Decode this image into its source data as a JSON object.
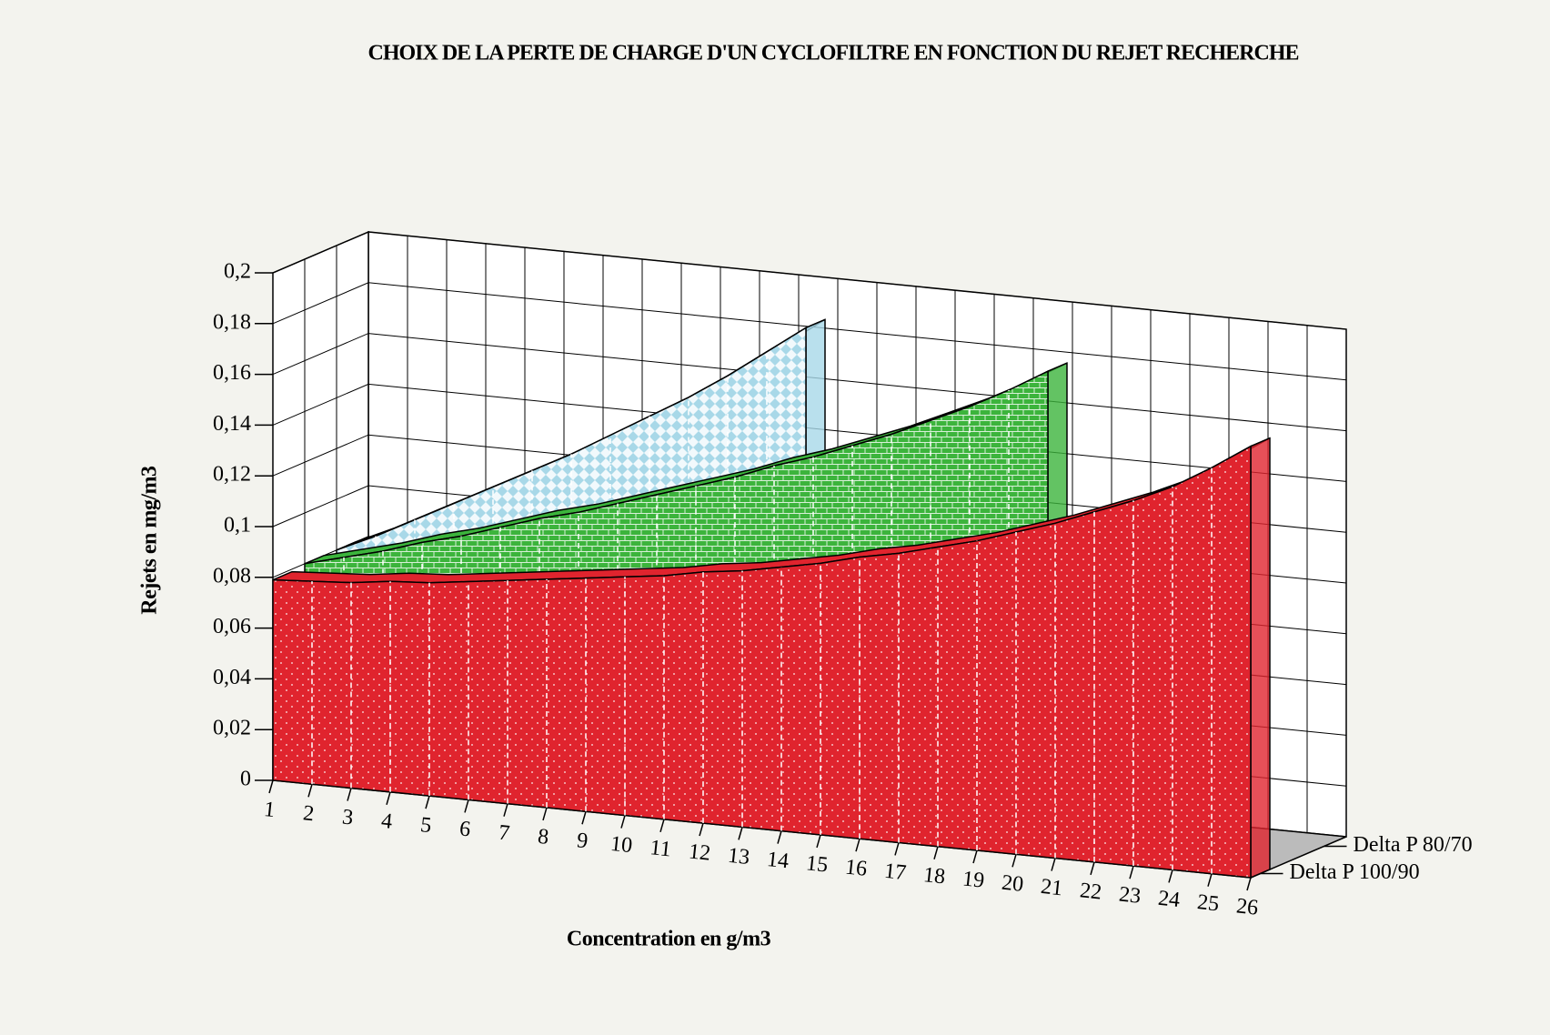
{
  "chart_data": {
    "type": "area3d",
    "title": "CHOIX DE LA PERTE DE CHARGE D'UN CYCLOFILTRE EN FONCTION DU REJET RECHERCHE",
    "x_label": "Concentration en g/m3",
    "y_label": "Rejets en mg/m3",
    "categories": [
      "1",
      "2",
      "3",
      "4",
      "5",
      "6",
      "7",
      "8",
      "9",
      "10",
      "11",
      "12",
      "13",
      "14",
      "15",
      "16",
      "17",
      "18",
      "19",
      "20",
      "21",
      "22",
      "23",
      "24",
      "25",
      "26"
    ],
    "series": [
      {
        "name": "Delta P 100/90",
        "color": "#e0242e",
        "values": [
          0.079,
          0.08,
          0.081,
          0.083,
          0.084,
          0.086,
          0.088,
          0.09,
          0.092,
          0.094,
          0.096,
          0.099,
          0.101,
          0.104,
          0.107,
          0.111,
          0.114,
          0.118,
          0.122,
          0.127,
          0.132,
          0.138,
          0.144,
          0.151,
          0.16,
          0.17
        ]
      },
      {
        "name": null,
        "color": "#3cb43c",
        "values": [
          0.08,
          0.084,
          0.088,
          0.093,
          0.097,
          0.102,
          0.107,
          0.111,
          0.116,
          0.121,
          0.126,
          0.131,
          0.137,
          0.142,
          0.148,
          0.154,
          0.161,
          0.168,
          0.176,
          0.185,
          null,
          null,
          null,
          null,
          null,
          null
        ]
      },
      {
        "name": "Delta P 80/70",
        "color": "#a8d8e8",
        "values": [
          0.08,
          0.087,
          0.095,
          0.103,
          0.111,
          0.119,
          0.127,
          0.136,
          0.145,
          0.154,
          0.164,
          0.175,
          0.186,
          null,
          null,
          null,
          null,
          null,
          null,
          null,
          null,
          null,
          null,
          null,
          null,
          null
        ]
      }
    ],
    "ylim": [
      0,
      0.2
    ],
    "yticks": [
      0,
      {
        "value": 0.02,
        "label": "0,02"
      },
      {
        "value": 0.04,
        "label": "0,04"
      },
      {
        "value": 0.06,
        "label": "0,06"
      },
      {
        "value": 0.08,
        "label": "0,08"
      },
      {
        "value": 0.1,
        "label": "0,1"
      },
      {
        "value": 0.12,
        "label": "0,12"
      },
      {
        "value": 0.14,
        "label": "0,14"
      },
      {
        "value": 0.16,
        "label": "0,16"
      },
      {
        "value": 0.18,
        "label": "0,18"
      },
      {
        "value": 0.2,
        "label": "0,2"
      }
    ],
    "grid": true
  }
}
